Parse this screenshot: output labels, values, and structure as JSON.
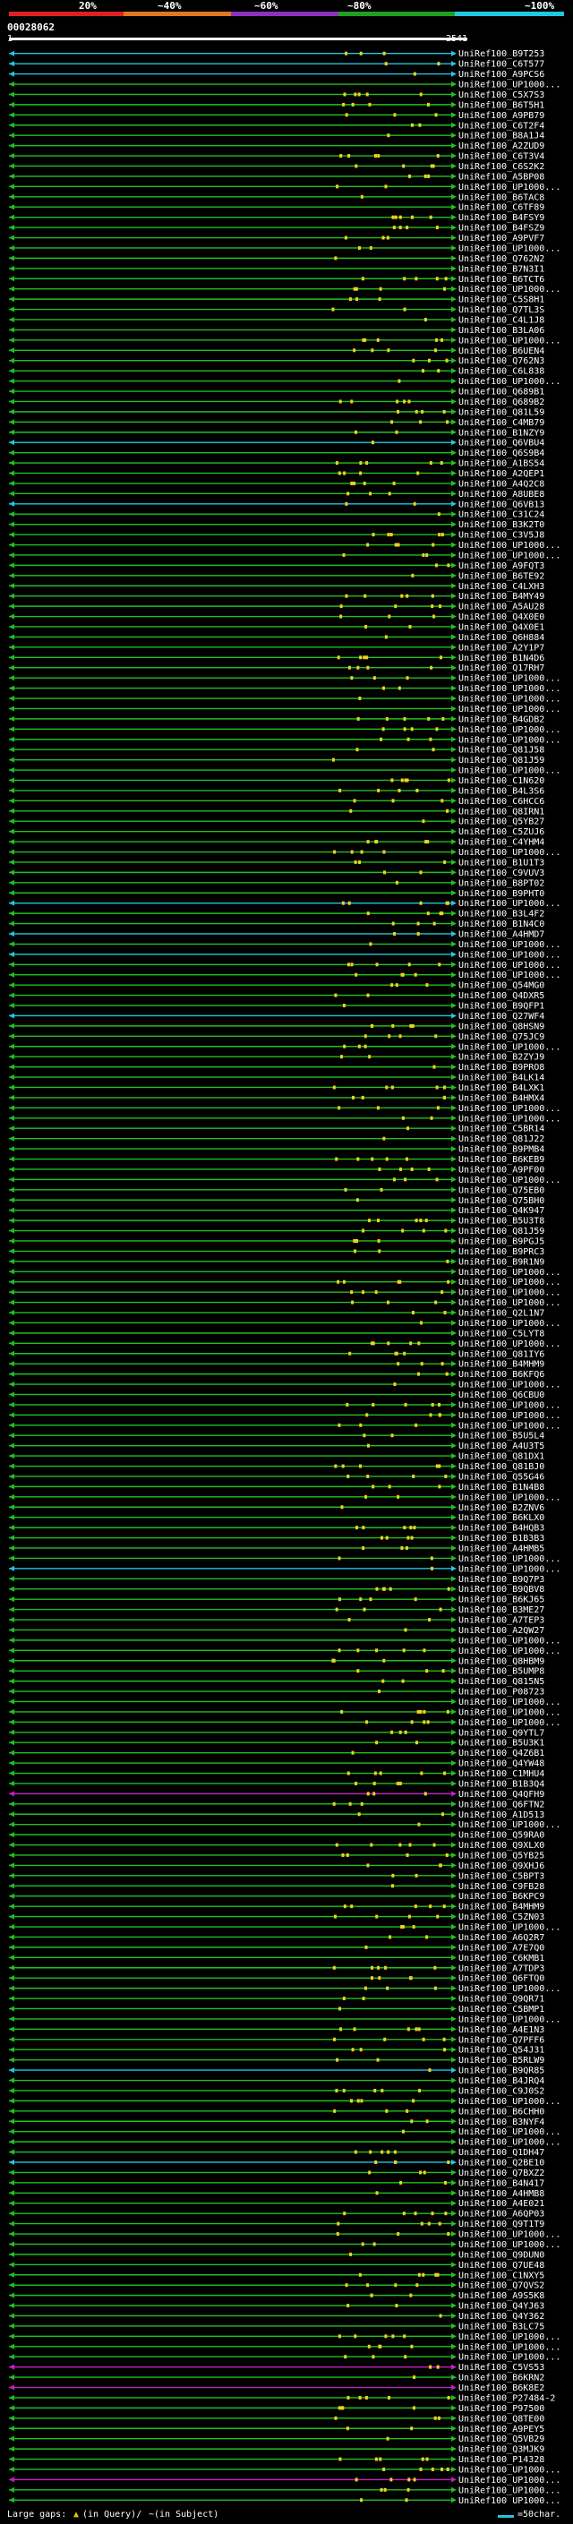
{
  "header": {
    "query_id": "00028062",
    "ruler_start": "1",
    "ruler_end": "2541",
    "scale_labels": [
      "20%",
      "~40%",
      "~60%",
      "~80%",
      "~100%"
    ],
    "scale_colors": [
      "#e02020",
      "#e07820",
      "#9030c0",
      "#20a020",
      "#20c8e0"
    ]
  },
  "colors": {
    "green": "#20c020",
    "cyan": "#20c8e0",
    "magenta": "#c020c0",
    "yellow": "#f0d020",
    "text": "#ffffff"
  },
  "hits": [
    "UniRef100_B9T253",
    "UniRef100_C6T577",
    "UniRef100_A9PCS6",
    "UniRef100_UP1000...",
    "UniRef100_C5X7S3",
    "UniRef100_B6T5H1",
    "UniRef100_A9PB79",
    "UniRef100_C6T2F4",
    "UniRef100_B8A1J4",
    "UniRef100_A2ZUD9",
    "UniRef100_C6T3V4",
    "UniRef100_C6S2K2",
    "UniRef100_A5BP08",
    "UniRef100_UP1000...",
    "UniRef100_B6TAC8",
    "UniRef100_C6TF89",
    "UniRef100_B4FSY9",
    "UniRef100_B4FSZ9",
    "UniRef100_A9PVF7",
    "UniRef100_UP1000...",
    "UniRef100_Q762N2",
    "UniRef100_B7N3I1",
    "UniRef100_B6TCT6",
    "UniRef100_UP1000...",
    "UniRef100_C5S8H1",
    "UniRef100_Q7TL3S",
    "UniRef100_C4L1J8",
    "UniRef100_B3LA06",
    "UniRef100_UP1000...",
    "UniRef100_B6UEN4",
    "UniRef100_Q762N3",
    "UniRef100_C6L838",
    "UniRef100_UP1000...",
    "UniRef100_Q689B1",
    "UniRef100_Q689B2",
    "UniRef100_Q81L59",
    "UniRef100_C4MB79",
    "UniRef100_B1NZY9",
    "UniRef100_Q6VBU4",
    "UniRef100_Q6S9B4",
    "UniRef100_A1BS54",
    "UniRef100_A2QEP1",
    "UniRef100_A4Q2C8",
    "UniRef100_A8UBE8",
    "UniRef100_Q6VB13",
    "UniRef100_C31C24",
    "UniRef100_B3K2T0",
    "UniRef100_C3V5J8",
    "UniRef100_UP1000...",
    "UniRef100_UP1000...",
    "UniRef100_A9FQT3",
    "UniRef100_B6TE92",
    "UniRef100_C4LXH3",
    "UniRef100_B4MY49",
    "UniRef100_A5AU28",
    "UniRef100_Q4X0E0",
    "UniRef100_Q4X0E1",
    "UniRef100_Q6H884",
    "UniRef100_A2Y1P7",
    "UniRef100_B1N4D6",
    "UniRef100_Q17RH7",
    "UniRef100_UP1000...",
    "UniRef100_UP1000...",
    "UniRef100_UP1000...",
    "UniRef100_UP1000...",
    "UniRef100_B4GDB2",
    "UniRef100_UP1000...",
    "UniRef100_UP1000...",
    "UniRef100_Q81J58",
    "UniRef100_Q81J59",
    "UniRef100_UP1000...",
    "UniRef100_C1N620",
    "UniRef100_B4L3S6",
    "UniRef100_C6HCC6",
    "UniRef100_Q8IRN1",
    "UniRef100_Q5YB27",
    "UniRef100_C5ZUJ6",
    "UniRef100_C4YHM4",
    "UniRef100_UP1000...",
    "UniRef100_B1U1T3",
    "UniRef100_C9VUV3",
    "UniRef100_B8PT02",
    "UniRef100_B9PHT0",
    "UniRef100_UP1000...",
    "UniRef100_B3L4F2",
    "UniRef100_B1N4C0",
    "UniRef100_A4HMD7",
    "UniRef100_UP1000...",
    "UniRef100_UP1000...",
    "UniRef100_UP1000...",
    "UniRef100_UP1000...",
    "UniRef100_Q54MG0",
    "UniRef100_Q4DXR5",
    "UniRef100_B9QFP1",
    "UniRef100_Q27WF4",
    "UniRef100_Q8HSN9",
    "UniRef100_Q75JC9",
    "UniRef100_UP1000...",
    "UniRef100_B2ZYJ9",
    "UniRef100_B9PRO8",
    "UniRef100_B4LK14",
    "UniRef100_B4LXK1",
    "UniRef100_B4HMX4",
    "UniRef100_UP1000...",
    "UniRef100_UP1000...",
    "UniRef100_C5BR14",
    "UniRef100_Q81J22",
    "UniRef100_B9PMB4",
    "UniRef100_B6KEB9",
    "UniRef100_A9PF00",
    "UniRef100_UP1000...",
    "UniRef100_Q75EB0",
    "UniRef100_Q75BH0",
    "UniRef100_Q4K947",
    "UniRef100_B5U3T8",
    "UniRef100_Q81J59",
    "UniRef100_B9PGJ5",
    "UniRef100_B9PRC3",
    "UniRef100_B9R1N9",
    "UniRef100_UP1000...",
    "UniRef100_UP1000...",
    "UniRef100_UP1000...",
    "UniRef100_UP1000...",
    "UniRef100_Q2L1N7",
    "UniRef100_UP1000...",
    "UniRef100_C5LYT8",
    "UniRef100_UP1000...",
    "UniRef100_Q81IY6",
    "UniRef100_B4MHM9",
    "UniRef100_B6KFQ6",
    "UniRef100_UP1000...",
    "UniRef100_Q6CBU0",
    "UniRef100_UP1000...",
    "UniRef100_UP1000...",
    "UniRef100_UP1000...",
    "UniRef100_B5U5L4",
    "UniRef100_A4U3T5",
    "UniRef100_Q81DX1",
    "UniRef100_Q81BJ0",
    "UniRef100_Q55G46",
    "UniRef100_B1N4B8",
    "UniRef100_UP1000...",
    "UniRef100_B2ZNV6",
    "UniRef100_B6KLX0",
    "UniRef100_B4HQB3",
    "UniRef100_B1B3B3",
    "UniRef100_A4HMB5",
    "UniRef100_UP1000...",
    "UniRef100_UP1000...",
    "UniRef100_B9Q7P3",
    "UniRef100_B9QBV8",
    "UniRef100_B6KJ65",
    "UniRef100_B3ME27",
    "UniRef100_A7TEP3",
    "UniRef100_A2QW27",
    "UniRef100_UP1000...",
    "UniRef100_UP1000...",
    "UniRef100_Q8HBM9",
    "UniRef100_B5UMP8",
    "UniRef100_Q815N5",
    "UniRef100_P08723",
    "UniRef100_UP1000...",
    "UniRef100_UP1000...",
    "UniRef100_UP1000...",
    "UniRef100_Q9YTL7",
    "UniRef100_B5U3K1",
    "UniRef100_Q4Z6B1",
    "UniRef100_Q4YW48",
    "UniRef100_C1MHU4",
    "UniRef100_B1B3Q4",
    "UniRef100_Q4QFH9",
    "UniRef100_Q6FTN2",
    "UniRef100_A1D513",
    "UniRef100_UP1000...",
    "UniRef100_Q59RA0",
    "UniRef100_Q9XLX0",
    "UniRef100_Q5YB25",
    "UniRef100_Q9XHJ6",
    "UniRef100_C5BPT3",
    "UniRef100_C9FB28",
    "UniRef100_B6KPC9",
    "UniRef100_B4MHM9",
    "UniRef100_C5ZN03",
    "UniRef100_UP1000...",
    "UniRef100_A6Q2R7",
    "UniRef100_A7E7Q0",
    "UniRef100_C6KMB1",
    "UniRef100_A7TDP3",
    "UniRef100_Q6FTQ0",
    "UniRef100_UP1000...",
    "UniRef100_Q9QR71",
    "UniRef100_C5BMP1",
    "UniRef100_UP1000...",
    "UniRef100_A4E1N3",
    "UniRef100_Q7PFF6",
    "UniRef100_Q54J31",
    "UniRef100_B5RLW9",
    "UniRef100_B9QR85",
    "UniRef100_B4JRQ4",
    "UniRef100_C9J0S2",
    "UniRef100_UP1000...",
    "UniRef100_B6CHH0",
    "UniRef100_B3NYF4",
    "UniRef100_UP1000...",
    "UniRef100_UP1000...",
    "UniRef100_Q1DH47",
    "UniRef100_Q2BE10",
    "UniRef100_Q7BXZ2",
    "UniRef100_B4N417",
    "UniRef100_A4HMB8",
    "UniRef100_A4E021",
    "UniRef100_A6QP03",
    "UniRef100_Q9T1T9",
    "UniRef100_UP1000...",
    "UniRef100_UP1000...",
    "UniRef100_Q9DUN0",
    "UniRef100_Q7UE48",
    "UniRef100_C1NXY5",
    "UniRef100_Q7QVS2",
    "UniRef100_A9S5K8",
    "UniRef100_Q4YJ63",
    "UniRef100_Q4Y362",
    "UniRef100_B3LC75",
    "UniRef100_UP1000...",
    "UniRef100_UP1000...",
    "UniRef100_UP1000...",
    "UniRef100_C5VS53",
    "UniRef100_B6KRN2",
    "UniRef100_B6K8E2",
    "UniRef100_P27484-2",
    "UniRef100_P97500",
    "UniRef100_Q8TE00",
    "UniRef100_A9PEY5",
    "UniRef100_Q5VB29",
    "UniRef100_Q3MJK9",
    "UniRef100_P14328",
    "UniRef100_UP1000...",
    "UniRef100_UP1000...",
    "UniRef100_UP1000...",
    "UniRef100_UP1000..."
  ],
  "legend": {
    "prefix": "Large gaps:",
    "dot_glyph": "▲",
    "in_query": "(in Query)/",
    "in_subject": "~(in Subject)",
    "scale_text": "=50char."
  }
}
